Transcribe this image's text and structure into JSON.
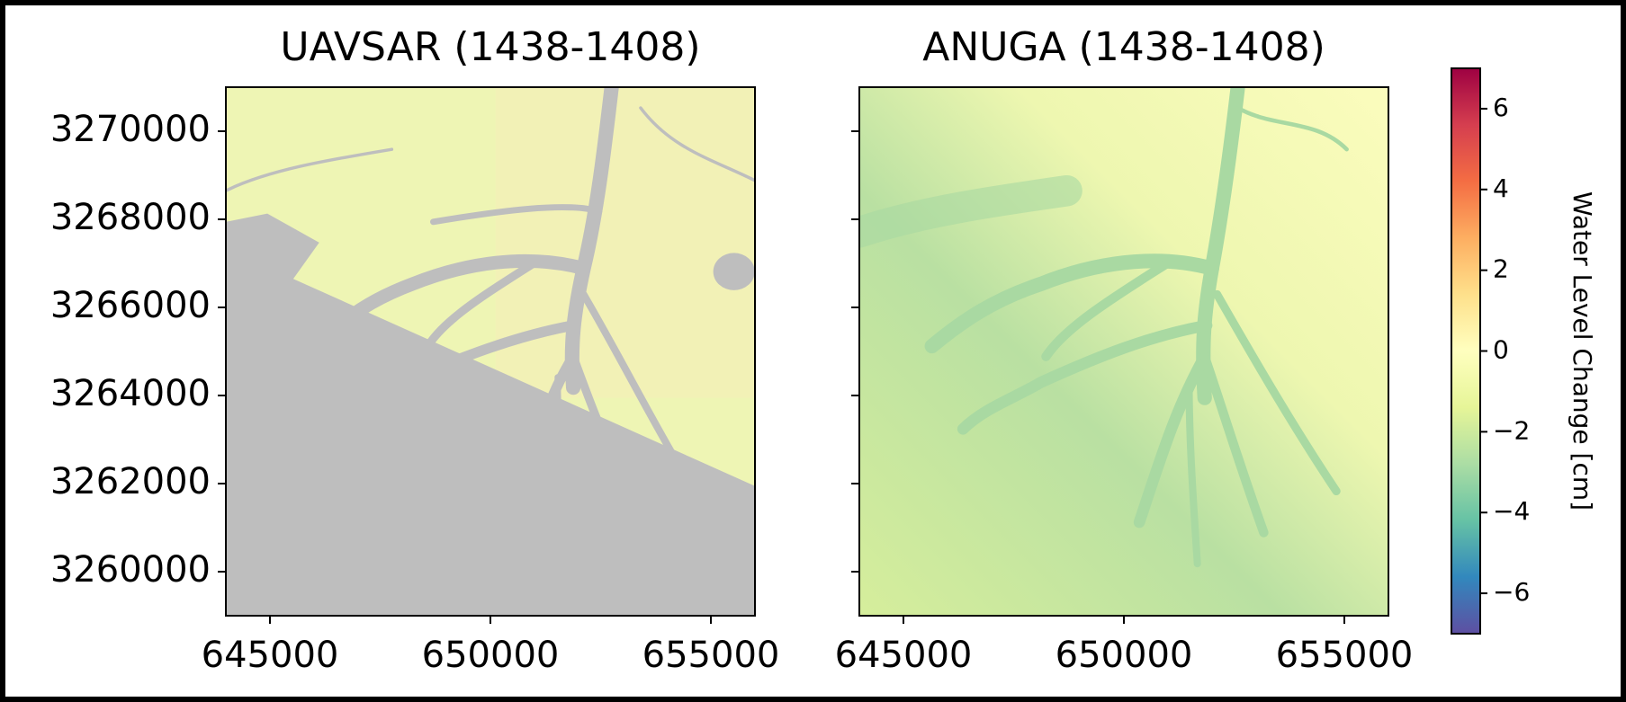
{
  "chart_data": [
    {
      "type": "image",
      "title": "UAVSAR (1438-1408)",
      "xlim": [
        644000,
        656000
      ],
      "ylim": [
        3259000,
        3271000
      ],
      "xticks": [
        645000,
        650000,
        655000
      ],
      "yticks": [
        3260000,
        3262000,
        3264000,
        3266000,
        3268000,
        3270000
      ],
      "show_ytick_labels": true
    },
    {
      "type": "image",
      "title": "ANUGA (1438-1408)",
      "xlim": [
        644000,
        656000
      ],
      "ylim": [
        3259000,
        3271000
      ],
      "xticks": [
        645000,
        650000,
        655000
      ],
      "yticks": [
        3260000,
        3262000,
        3264000,
        3266000,
        3268000,
        3270000
      ],
      "show_ytick_labels": false
    },
    {
      "type": "colorbar",
      "label": "Water Level Change [cm]",
      "colormap": "Spectral_r",
      "ylim": [
        -7,
        7
      ],
      "yticks": [
        {
          "value": -6,
          "label": "−6"
        },
        {
          "value": -4,
          "label": "−4"
        },
        {
          "value": -2,
          "label": "−2"
        },
        0,
        2,
        4,
        6
      ]
    }
  ]
}
